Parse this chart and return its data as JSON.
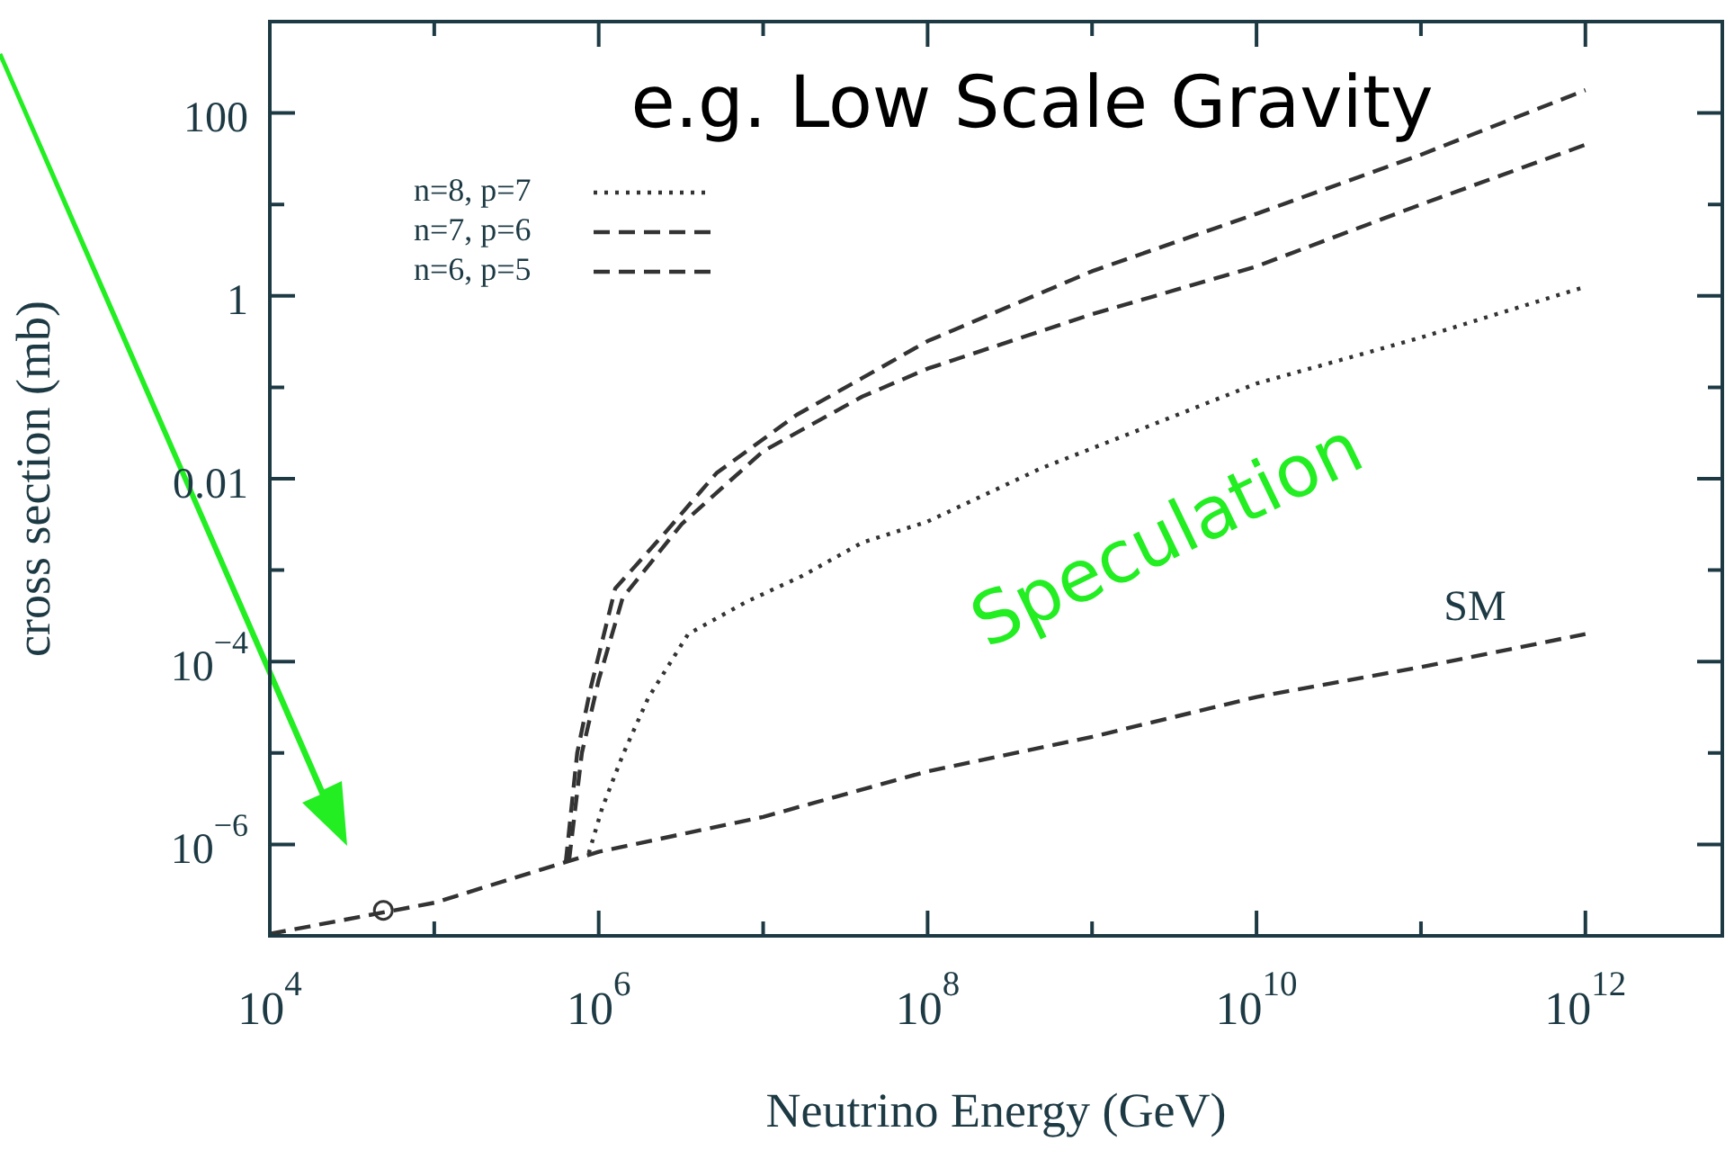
{
  "chart_data": {
    "type": "line",
    "title": "e.g. Low Scale Gravity",
    "xlabel": "Neutrino Energy (GeV)",
    "ylabel": "cross section (mb)",
    "log": "xy",
    "grid": false,
    "legend": "top left",
    "marker": "none",
    "xlim": [
      10000,
      6800000000000.0
    ],
    "ylim": [
      1e-07,
      1000
    ],
    "xticks": [
      {
        "value": 10000,
        "label": "10$^{4}$"
      },
      {
        "value": 100000,
        "label": null
      },
      {
        "value": 1000000,
        "label": "10$^{6}$"
      },
      {
        "value": 10000000,
        "label": null
      },
      {
        "value": 100000000,
        "label": "10$^{8}$"
      },
      {
        "value": 1000000000,
        "label": null
      },
      {
        "value": 10000000000,
        "label": "10$^{10}$"
      },
      {
        "value": 100000000000,
        "label": null
      },
      {
        "value": 1000000000000,
        "label": "10$^{12}$"
      }
    ],
    "yticks": [
      {
        "value": 1e-07,
        "label": null
      },
      {
        "value": 1e-06,
        "label": "10$^{−6}$"
      },
      {
        "value": 1e-05,
        "label": null
      },
      {
        "value": 0.0001,
        "label": "10$^{−4}$"
      },
      {
        "value": 0.001,
        "label": null
      },
      {
        "value": 0.01,
        "label": "0.01"
      },
      {
        "value": 0.1,
        "label": null
      },
      {
        "value": 1,
        "label": "1"
      },
      {
        "value": 10,
        "label": null
      },
      {
        "value": 100,
        "label": "100"
      },
      {
        "value": 1000,
        "label": null
      }
    ],
    "series": [
      {
        "name": "n=8, p=7",
        "color": "#333333",
        "line_style": "dotted",
        "x": [
          870000,
          1050000,
          1400000,
          2000000,
          3500000,
          7900000,
          17400000,
          40000000,
          100000000,
          490000000,
          2000000000,
          10000000000,
          100000000000,
          1000000000000
        ],
        "values": [
          8e-07,
          2.5e-06,
          9.5e-06,
          4e-05,
          0.0002,
          0.00045,
          0.00087,
          0.002,
          0.0034,
          0.013,
          0.035,
          0.11,
          0.35,
          1.26
        ]
      },
      {
        "name": "n=7, p=6",
        "color": "#333333",
        "line_style": "dashed",
        "x": [
          630000,
          740000,
          890000,
          1260000,
          2500000,
          5200000,
          16000000,
          40000000,
          100000000,
          1000000000,
          10000000000,
          100000000000,
          1000000000000
        ],
        "values": [
          6.3e-07,
          1e-05,
          5e-05,
          0.00063,
          0.0025,
          0.0115,
          0.05,
          0.126,
          0.32,
          1.86,
          7.9,
          35,
          178
        ]
      },
      {
        "name": "n=6, p=5",
        "color": "#333333",
        "line_style": "dashed",
        "x": [
          660000,
          790000,
          1000000,
          1400000,
          3200000,
          10000000,
          40000000,
          100000000,
          1000000000,
          10000000000,
          100000000000,
          1000000000000
        ],
        "values": [
          6.6e-07,
          1e-05,
          6.3e-05,
          0.0005,
          0.0032,
          0.02,
          0.079,
          0.16,
          0.63,
          2.1,
          10,
          45
        ]
      },
      {
        "color": "#333333",
        "line_style": "dashed",
        "x": [
          10000,
          100000,
          1000000,
          10000000,
          100000000,
          1000000000,
          10000000000,
          100000000000,
          1000000000000
        ],
        "values": [
          1.05e-07,
          2.3e-07,
          8.3e-07,
          2e-06,
          6.3e-06,
          1.5e-05,
          4.1e-05,
          8.7e-05,
          0.0002
        ]
      },
      {
        "type": "scatter",
        "color": "#333333",
        "marker": "circle",
        "x": [
          49000
        ],
        "values": [
          1.9e-07
        ]
      }
    ],
    "annotations": [
      "SM",
      "Speculation"
    ]
  }
}
